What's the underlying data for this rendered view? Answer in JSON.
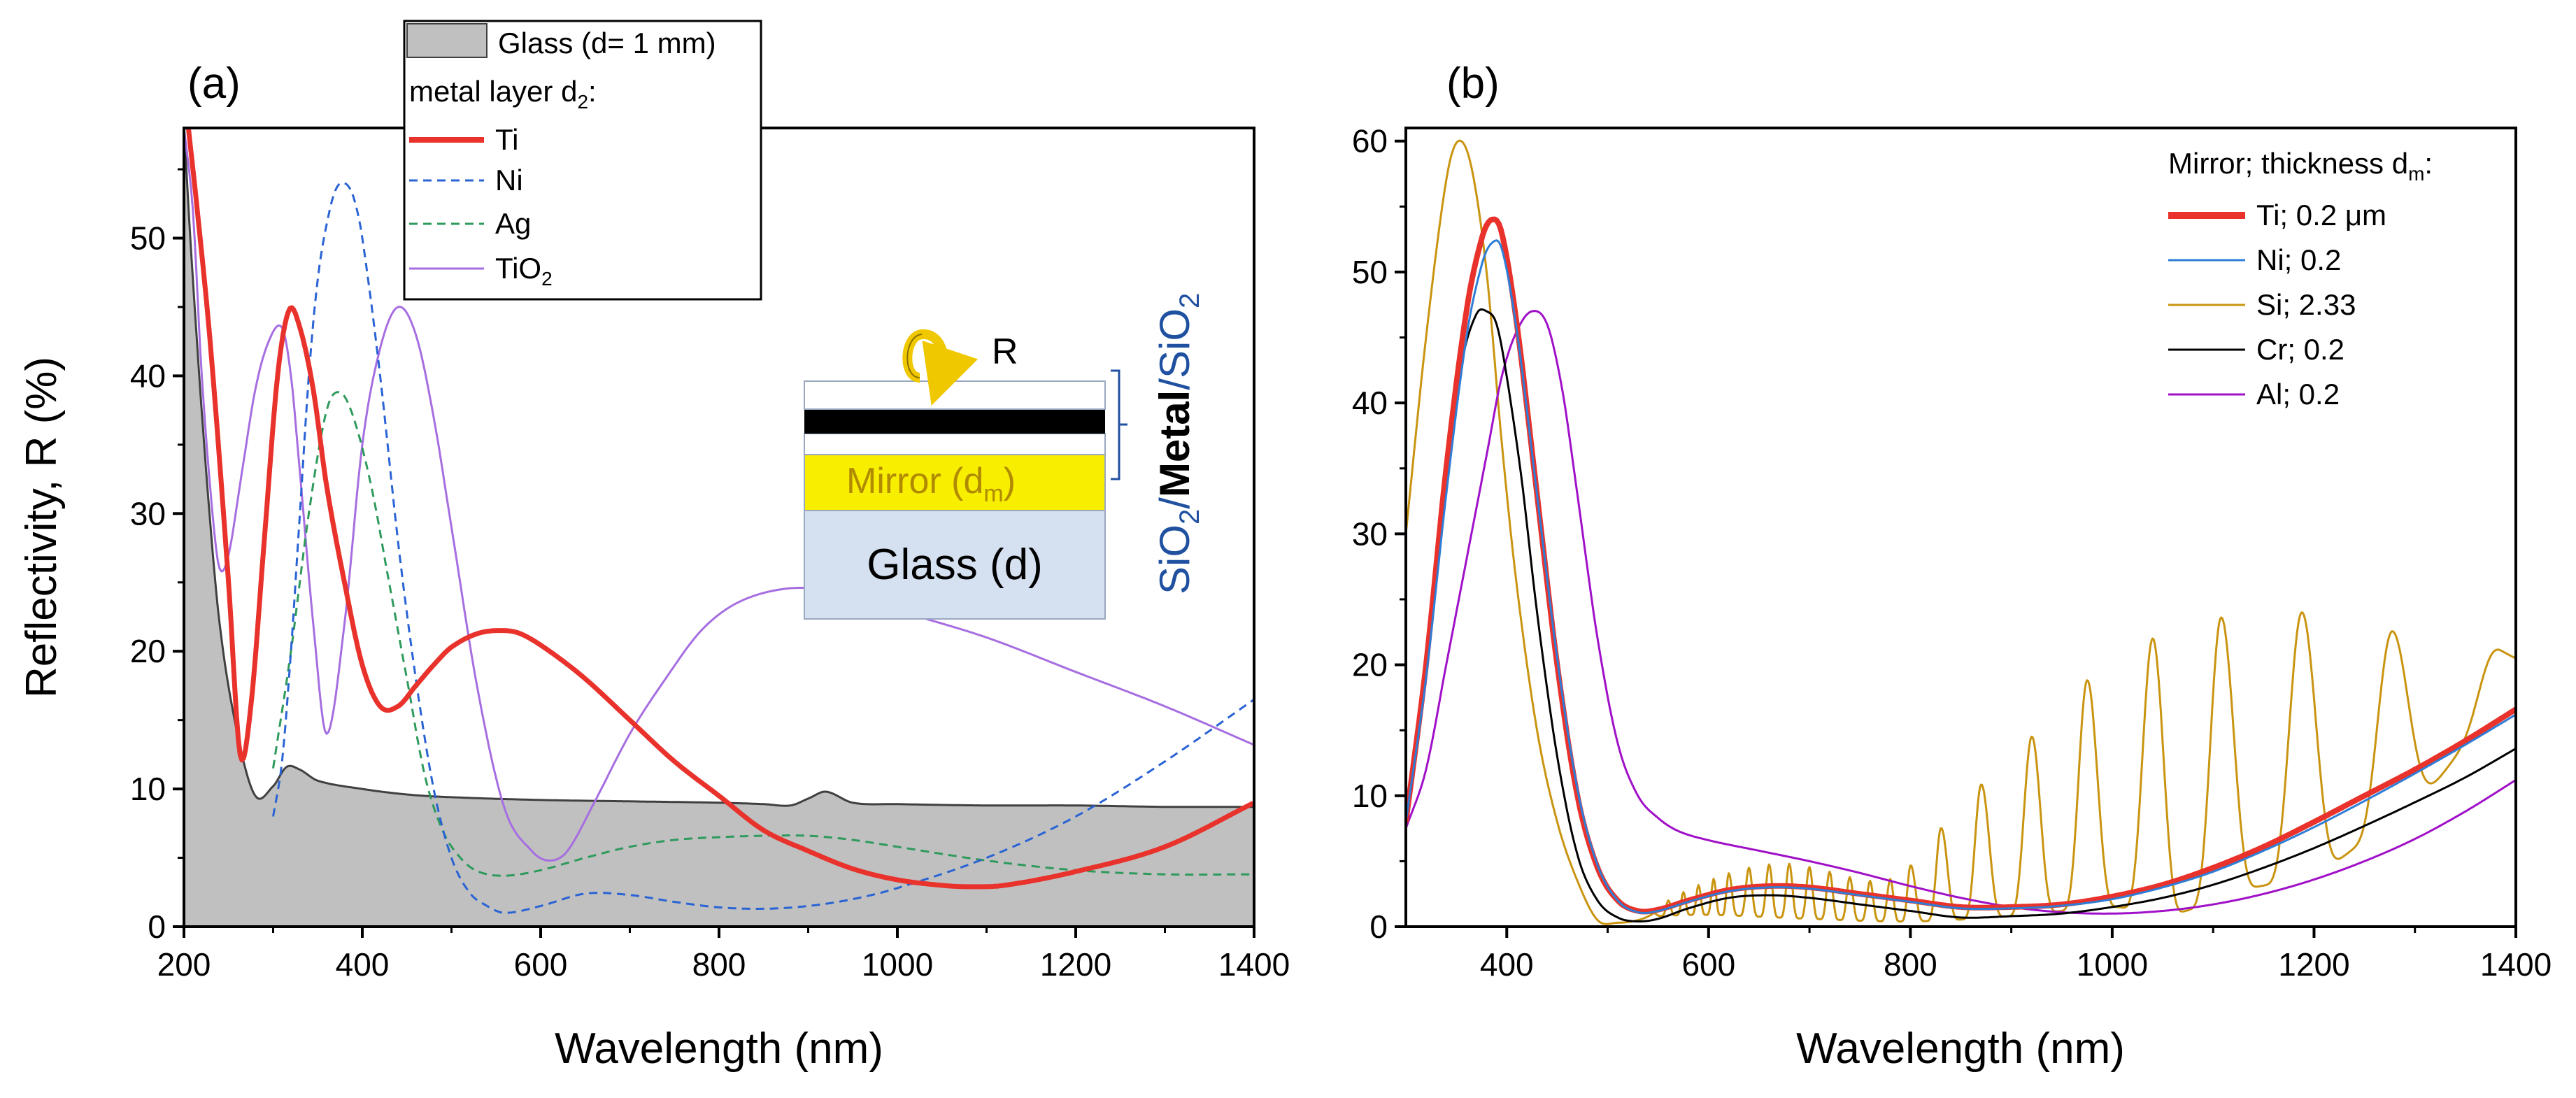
{
  "chart_data": [
    {
      "panel_label": "(a)",
      "type": "line",
      "xlabel": "Wavelength (nm)",
      "ylabel": "Reflectivity, R (%)",
      "xlim": [
        200,
        1400
      ],
      "ylim": [
        0,
        58
      ],
      "xticks": [
        200,
        400,
        600,
        800,
        1000,
        1200,
        1400
      ],
      "yticks": [
        0,
        10,
        20,
        30,
        40,
        50
      ],
      "legend": {
        "placement": "top-left",
        "entries": [
          "Glass (d= 1 mm)",
          "metal layer d",
          "Ti",
          "Ni",
          "Ag",
          "TiO"
        ],
        "subscripts": {
          "metal layer d": "2",
          "TiO": "2"
        }
      },
      "series": [
        {
          "name": "Glass (d= 1 mm)",
          "style": "area",
          "color": "#c0c0c0",
          "stroke": "#404040",
          "x": [
            200,
            210,
            225,
            240,
            260,
            280,
            300,
            315,
            330,
            350,
            400,
            450,
            500,
            600,
            700,
            800,
            850,
            880,
            900,
            920,
            950,
            1000,
            1100,
            1200,
            1300,
            1400
          ],
          "y": [
            58,
            47,
            33,
            22,
            14,
            9.5,
            10.2,
            11.6,
            11.4,
            10.6,
            10.0,
            9.6,
            9.4,
            9.2,
            9.1,
            9.0,
            8.9,
            8.8,
            9.3,
            9.8,
            9.0,
            8.9,
            8.8,
            8.8,
            8.7,
            8.7
          ]
        },
        {
          "name": "Ti",
          "style": "solid",
          "color": "#e8322b",
          "width": 7,
          "x": [
            205,
            215,
            230,
            250,
            263,
            275,
            290,
            305,
            318,
            330,
            345,
            360,
            380,
            400,
            420,
            440,
            460,
            480,
            500,
            530,
            560,
            580,
            610,
            650,
            700,
            750,
            800,
            850,
            900,
            950,
            1000,
            1050,
            1080,
            1120,
            1200,
            1300,
            1400
          ],
          "y": [
            58,
            52,
            42,
            25,
            12.5,
            16,
            28,
            40,
            44.8,
            43.5,
            39,
            32,
            25,
            19,
            16,
            16,
            17.5,
            19,
            20.3,
            21.3,
            21.5,
            21.2,
            20,
            18,
            15,
            12,
            9.5,
            7,
            5.5,
            4.2,
            3.4,
            3.0,
            2.9,
            3.0,
            4.0,
            5.8,
            9.0
          ]
        },
        {
          "name": "Ni",
          "style": "dashed",
          "color": "#2a63d4",
          "width": 3,
          "x": [
            300,
            310,
            320,
            330,
            340,
            350,
            360,
            370,
            380,
            390,
            400,
            420,
            440,
            460,
            480,
            500,
            520,
            540,
            560,
            600,
            650,
            700,
            750,
            800,
            850,
            900,
            950,
            1000,
            1100,
            1200,
            1300,
            1400
          ],
          "y": [
            8,
            12,
            20,
            30,
            40,
            47,
            51,
            53.5,
            54,
            53,
            50,
            40,
            28,
            18,
            10,
            5,
            2.5,
            1.5,
            1,
            1.5,
            2.4,
            2.3,
            1.8,
            1.4,
            1.3,
            1.5,
            2.0,
            2.8,
            5.0,
            8.0,
            12,
            16.5
          ]
        },
        {
          "name": "Ag",
          "style": "dashed",
          "color": "#2e9a5c",
          "width": 3,
          "x": [
            300,
            320,
            340,
            360,
            375,
            390,
            410,
            430,
            450,
            470,
            490,
            510,
            530,
            560,
            600,
            650,
            700,
            750,
            800,
            850,
            900,
            950,
            1000,
            1100,
            1200,
            1300,
            1400
          ],
          "y": [
            11.5,
            20,
            30,
            37.5,
            38.8,
            37,
            32,
            25,
            18,
            11,
            7,
            5,
            4,
            3.7,
            4.1,
            5.0,
            5.8,
            6.3,
            6.5,
            6.6,
            6.6,
            6.3,
            5.8,
            4.8,
            4.1,
            3.8,
            3.8
          ]
        },
        {
          "name": "TiO2",
          "style": "solid",
          "color": "#a66ee0",
          "width": 3,
          "x": [
            200,
            210,
            220,
            232,
            240,
            250,
            265,
            280,
            295,
            310,
            320,
            330,
            345,
            360,
            380,
            400,
            420,
            440,
            460,
            480,
            500,
            530,
            560,
            590,
            610,
            630,
            660,
            700,
            740,
            780,
            820,
            870,
            920,
            970,
            1000,
            1100,
            1200,
            1300,
            1400
          ],
          "y": [
            58,
            52,
            40,
            30,
            26,
            27,
            33,
            39,
            42.5,
            43.5,
            40,
            33,
            22,
            14,
            22,
            35,
            42,
            45,
            43,
            37,
            29,
            17,
            8.5,
            5.5,
            4.8,
            5.5,
            9,
            14,
            18,
            21.5,
            23.5,
            24.5,
            24.5,
            23.8,
            23,
            21,
            18.5,
            16,
            13.2
          ]
        }
      ],
      "inset": {
        "arrow_label": "R",
        "mirror_label": "Mirror (d",
        "mirror_subscript": "m",
        "mirror_close": ")",
        "glass_label": "Glass (d)",
        "stack_label_parts": [
          "SiO",
          "2",
          "/",
          "Metal",
          "/",
          "SiO",
          "2"
        ],
        "colors": {
          "metal": "#000000",
          "mirror": "#f8ee00",
          "mirror_text": "#b08a00",
          "glass": "#d5e0f0",
          "glass_text": "#707070",
          "stack_text": "#2050a0",
          "arrow": "#f0c800"
        }
      }
    },
    {
      "panel_label": "(b)",
      "type": "line",
      "xlabel": "Wavelength (nm)",
      "ylabel": "",
      "xlim": [
        300,
        1400
      ],
      "ylim": [
        0,
        61
      ],
      "xticks": [
        400,
        600,
        800,
        1000,
        1200,
        1400
      ],
      "yticks": [
        0,
        10,
        20,
        30,
        40,
        50,
        60
      ],
      "legend": {
        "placement": "top-right",
        "title": "Mirror; thickness d",
        "title_subscript": "m",
        "title_suffix": ":",
        "entries": [
          "Ti; 0.2 μm",
          "Ni; 0.2",
          "Si; 2.33",
          "Cr; 0.2",
          "Al; 0.2"
        ]
      },
      "series": [
        {
          "name": "Ti; 0.2 μm",
          "color": "#e8322b",
          "width": 8,
          "x": [
            300,
            320,
            340,
            360,
            375,
            385,
            395,
            410,
            430,
            450,
            470,
            490,
            510,
            530,
            550,
            580,
            620,
            660,
            700,
            750,
            800,
            850,
            900,
            950,
            1000,
            1050,
            1100,
            1150,
            1200,
            1250,
            1300,
            1350,
            1400
          ],
          "y": [
            8,
            20,
            35,
            47,
            52.5,
            54,
            53,
            46,
            33,
            20,
            10,
            4.5,
            2,
            1.2,
            1.3,
            2.0,
            2.8,
            3.1,
            3.0,
            2.5,
            2.0,
            1.5,
            1.5,
            1.7,
            2.3,
            3.2,
            4.5,
            6.1,
            8.0,
            10,
            12,
            14.2,
            16.6
          ]
        },
        {
          "name": "Ni; 0.2",
          "color": "#2e7dd6",
          "width": 3,
          "x": [
            300,
            320,
            340,
            360,
            375,
            385,
            395,
            410,
            430,
            450,
            470,
            490,
            510,
            530,
            550,
            580,
            620,
            660,
            700,
            750,
            800,
            850,
            900,
            950,
            1000,
            1050,
            1100,
            1150,
            1200,
            1250,
            1300,
            1350,
            1400
          ],
          "y": [
            8,
            19,
            33,
            45,
            50.5,
            52.2,
            51.8,
            45.5,
            33,
            20.5,
            10.5,
            4.7,
            2,
            1.1,
            1.2,
            1.9,
            2.7,
            3.0,
            2.9,
            2.4,
            1.9,
            1.4,
            1.4,
            1.6,
            2.1,
            3.0,
            4.2,
            5.8,
            7.6,
            9.6,
            11.7,
            13.9,
            16.2
          ]
        },
        {
          "name": "Si; 2.33",
          "color": "#c99410",
          "width": 3,
          "osc": true,
          "env": [
            [
              300,
              30
            ],
            [
              320,
              45
            ],
            [
              340,
              57
            ],
            [
              352,
              60
            ],
            [
              365,
              58
            ],
            [
              380,
              50
            ],
            [
              395,
              37
            ],
            [
              410,
              26
            ],
            [
              430,
              15
            ],
            [
              450,
              8
            ],
            [
              470,
              3.5
            ],
            [
              490,
              0.5
            ],
            [
              510,
              0.3
            ],
            [
              530,
              0.5
            ],
            [
              545,
              1.0
            ],
            [
              560,
              2.0
            ],
            [
              600,
              3.5
            ],
            [
              640,
              4.5
            ],
            [
              680,
              4.8
            ],
            [
              720,
              4.2
            ],
            [
              760,
              3.5
            ],
            [
              790,
              4.0
            ],
            [
              820,
              6.5
            ],
            [
              850,
              9.5
            ],
            [
              880,
              11.5
            ],
            [
              920,
              14.5
            ],
            [
              970,
              18.5
            ],
            [
              1000,
              20
            ],
            [
              1040,
              22
            ],
            [
              1100,
              23.5
            ],
            [
              1140,
              23.8
            ],
            [
              1190,
              24
            ],
            [
              1240,
              23.5
            ],
            [
              1280,
              22.5
            ],
            [
              1330,
              21
            ],
            [
              1370,
              21.5
            ],
            [
              1400,
              20.5
            ]
          ],
          "min_env": [
            [
              540,
              0.8
            ],
            [
              600,
              0.9
            ],
            [
              700,
              0.6
            ],
            [
              800,
              0.4
            ],
            [
              900,
              0.8
            ],
            [
              1000,
              1.5
            ],
            [
              1060,
              1.0
            ],
            [
              1130,
              2.8
            ],
            [
              1200,
              4.0
            ],
            [
              1240,
              6.0
            ],
            [
              1320,
              11
            ],
            [
              1400,
              20
            ]
          ],
          "peaks_x": [
            545,
            560,
            575,
            590,
            605,
            620,
            640,
            660,
            680,
            700,
            720,
            740,
            760,
            780,
            800,
            830,
            870,
            920,
            975,
            1040,
            1108,
            1188,
            1278,
            1385
          ]
        },
        {
          "name": "Cr; 0.2",
          "color": "#000000",
          "width": 3,
          "x": [
            300,
            320,
            340,
            355,
            370,
            380,
            390,
            400,
            415,
            430,
            450,
            470,
            490,
            510,
            530,
            550,
            580,
            620,
            660,
            700,
            750,
            800,
            850,
            900,
            950,
            1000,
            1050,
            1100,
            1150,
            1200,
            1250,
            1300,
            1350,
            1400
          ],
          "y": [
            8,
            20,
            35,
            43,
            46.8,
            47,
            46,
            42,
            34,
            24,
            13,
            5.5,
            2,
            0.7,
            0.4,
            0.6,
            1.4,
            2.2,
            2.4,
            2.2,
            1.7,
            1.2,
            0.7,
            0.8,
            1.0,
            1.5,
            2.2,
            3.2,
            4.5,
            6.0,
            7.7,
            9.5,
            11.4,
            13.6
          ]
        },
        {
          "name": "Al; 0.2",
          "color": "#a010c8",
          "width": 3,
          "x": [
            300,
            320,
            340,
            360,
            380,
            395,
            410,
            425,
            440,
            455,
            470,
            490,
            510,
            530,
            550,
            570,
            600,
            650,
            700,
            750,
            800,
            850,
            900,
            950,
            1000,
            1050,
            1100,
            1150,
            1200,
            1250,
            1300,
            1350,
            1400
          ],
          "y": [
            7.5,
            12,
            20,
            28,
            36,
            42,
            45.5,
            47,
            46,
            41,
            33,
            22,
            14,
            10,
            8.3,
            7.3,
            6.6,
            5.8,
            5.0,
            4.1,
            3.1,
            2.2,
            1.5,
            1.1,
            1.0,
            1.2,
            1.7,
            2.5,
            3.6,
            5.0,
            6.7,
            8.8,
            11.2
          ]
        }
      ]
    }
  ]
}
